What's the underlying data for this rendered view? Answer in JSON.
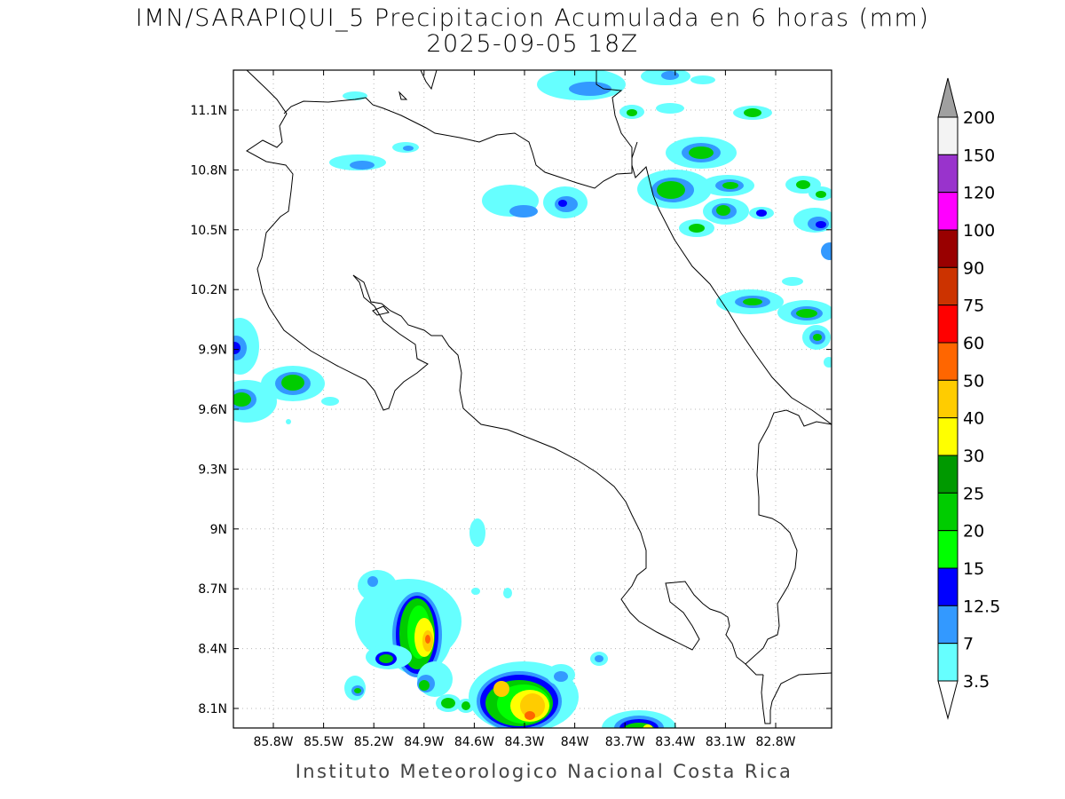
{
  "title_line1": "IMN/SARAPIQUI_5 Precipitacion Acumulada en 6 horas (mm)",
  "title_line2": "2025-09-05 18Z",
  "credit": "Instituto Meteorologico Nacional Costa Rica",
  "axes": {
    "lat_labels": [
      "11.1N",
      "10.8N",
      "10.5N",
      "10.2N",
      "9.9N",
      "9.6N",
      "9.3N",
      "9N",
      "8.7N",
      "8.4N",
      "8.1N"
    ],
    "lon_labels": [
      "85.8W",
      "85.5W",
      "85.2W",
      "84.9W",
      "84.6W",
      "84.3W",
      "84W",
      "83.7W",
      "83.4W",
      "83.1W",
      "82.8W"
    ]
  },
  "colorbar": {
    "levels": [
      "200",
      "150",
      "120",
      "100",
      "90",
      "75",
      "60",
      "50",
      "40",
      "30",
      "25",
      "20",
      "15",
      "12.5",
      "7",
      "3.5"
    ],
    "colors": [
      "#f3f3f3",
      "#9933cc",
      "#ff00ff",
      "#990000",
      "#cc3300",
      "#ff0000",
      "#ff6600",
      "#ffcc00",
      "#ffff00",
      "#009900",
      "#00cc00",
      "#00ff00",
      "#0000ff",
      "#3399ff",
      "#66ffff"
    ],
    "over_color": "#a0a0a0",
    "under_color": "#ffffff"
  }
}
